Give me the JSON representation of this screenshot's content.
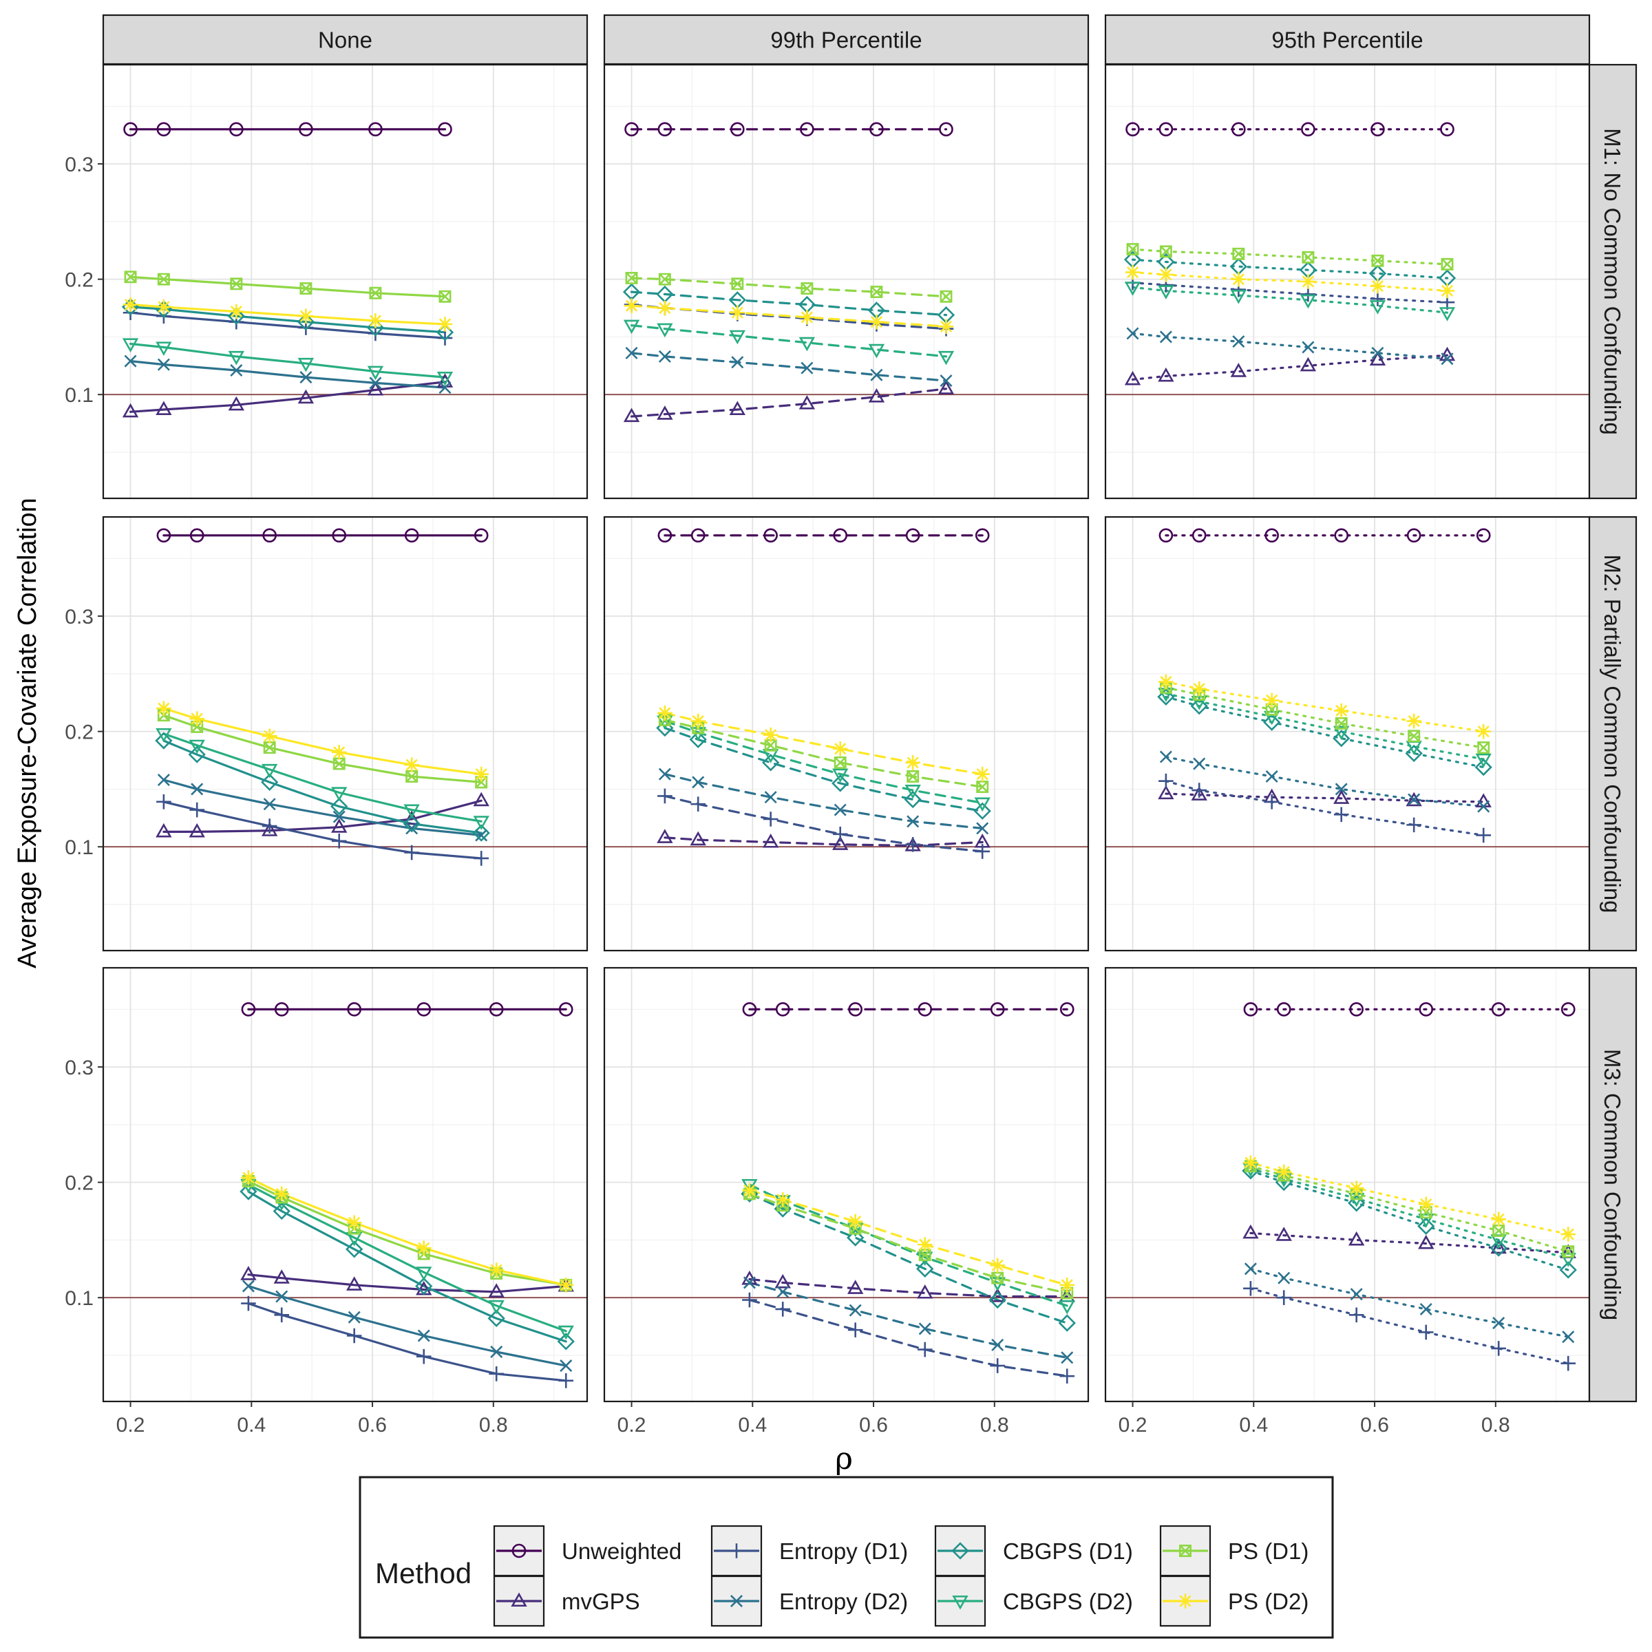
{
  "chart_data": {
    "type": "line",
    "layout": "faceted grid, 3 rows x 3 columns, shared axes",
    "ylabel": "Average Exposure-Covariate Correlation",
    "xlabel": "ρ",
    "x_ticks": [
      0.2,
      0.4,
      0.6,
      0.8
    ],
    "y_ticks": [
      0.1,
      0.2,
      0.3
    ],
    "xlim": [
      0.155,
      0.955
    ],
    "ylim": [
      0.01,
      0.386
    ],
    "reference_line_y": 0.1,
    "reference_line_color": "#8b4a4a",
    "grid": true,
    "legend_placement": "bottom",
    "col_facets": [
      "None",
      "99th Percentile",
      "95th Percentile"
    ],
    "col_linetypes": [
      "solid",
      "dashed",
      "dotted"
    ],
    "row_facets": [
      "M1: No Common Confounding",
      "M2: Partially Common Confounding",
      "M3: Common Confounding"
    ],
    "legend": {
      "title": "Method",
      "entries": [
        {
          "name": "Unweighted",
          "color": "#440154",
          "marker": "circle"
        },
        {
          "name": "mvGPS",
          "color": "#472d7b",
          "marker": "triangle"
        },
        {
          "name": "Entropy (D1)",
          "color": "#3b528b",
          "marker": "plus"
        },
        {
          "name": "Entropy (D2)",
          "color": "#2c728e",
          "marker": "cross"
        },
        {
          "name": "CBGPS (D1)",
          "color": "#21918c",
          "marker": "diamond"
        },
        {
          "name": "CBGPS (D2)",
          "color": "#28ae80",
          "marker": "triangle-down"
        },
        {
          "name": "PS (D1)",
          "color": "#8fd744",
          "marker": "square-x"
        },
        {
          "name": "PS (D2)",
          "color": "#fde725",
          "marker": "asterisk"
        }
      ]
    },
    "panels": [
      {
        "row": 0,
        "col": 0,
        "x": [
          0.2,
          0.255,
          0.375,
          0.49,
          0.605,
          0.72
        ],
        "series": {
          "Unweighted": [
            0.33,
            0.33,
            0.33,
            0.33,
            0.33,
            0.33
          ],
          "mvGPS": [
            0.085,
            0.087,
            0.091,
            0.097,
            0.104,
            0.111
          ],
          "Entropy (D1)": [
            0.171,
            0.168,
            0.163,
            0.158,
            0.153,
            0.149
          ],
          "Entropy (D2)": [
            0.129,
            0.126,
            0.121,
            0.115,
            0.11,
            0.106
          ],
          "CBGPS (D1)": [
            0.176,
            0.174,
            0.168,
            0.163,
            0.158,
            0.154
          ],
          "CBGPS (D2)": [
            0.144,
            0.141,
            0.133,
            0.127,
            0.12,
            0.115
          ],
          "PS (D1)": [
            0.202,
            0.2,
            0.196,
            0.192,
            0.188,
            0.185
          ],
          "PS (D2)": [
            0.178,
            0.176,
            0.172,
            0.168,
            0.164,
            0.161
          ]
        }
      },
      {
        "row": 0,
        "col": 1,
        "x": [
          0.2,
          0.255,
          0.375,
          0.49,
          0.605,
          0.72
        ],
        "series": {
          "Unweighted": [
            0.33,
            0.33,
            0.33,
            0.33,
            0.33,
            0.33
          ],
          "mvGPS": [
            0.081,
            0.083,
            0.087,
            0.092,
            0.098,
            0.105
          ],
          "Entropy (D1)": [
            0.178,
            0.175,
            0.17,
            0.166,
            0.161,
            0.157
          ],
          "Entropy (D2)": [
            0.136,
            0.133,
            0.128,
            0.123,
            0.117,
            0.112
          ],
          "CBGPS (D1)": [
            0.189,
            0.187,
            0.182,
            0.178,
            0.173,
            0.169
          ],
          "CBGPS (D2)": [
            0.16,
            0.157,
            0.151,
            0.145,
            0.139,
            0.133
          ],
          "PS (D1)": [
            0.201,
            0.2,
            0.196,
            0.192,
            0.189,
            0.185
          ],
          "PS (D2)": [
            0.177,
            0.175,
            0.171,
            0.167,
            0.163,
            0.159
          ]
        }
      },
      {
        "row": 0,
        "col": 2,
        "x": [
          0.2,
          0.255,
          0.375,
          0.49,
          0.605,
          0.72
        ],
        "series": {
          "Unweighted": [
            0.33,
            0.33,
            0.33,
            0.33,
            0.33,
            0.33
          ],
          "mvGPS": [
            0.113,
            0.116,
            0.12,
            0.125,
            0.13,
            0.134
          ],
          "Entropy (D1)": [
            0.197,
            0.195,
            0.191,
            0.187,
            0.183,
            0.18
          ],
          "Entropy (D2)": [
            0.153,
            0.15,
            0.146,
            0.141,
            0.136,
            0.131
          ],
          "CBGPS (D1)": [
            0.217,
            0.215,
            0.211,
            0.208,
            0.205,
            0.201
          ],
          "CBGPS (D2)": [
            0.193,
            0.19,
            0.186,
            0.182,
            0.177,
            0.171
          ],
          "PS (D1)": [
            0.226,
            0.224,
            0.222,
            0.219,
            0.216,
            0.213
          ],
          "PS (D2)": [
            0.206,
            0.204,
            0.2,
            0.198,
            0.194,
            0.19
          ]
        }
      },
      {
        "row": 1,
        "col": 0,
        "x": [
          0.255,
          0.31,
          0.43,
          0.545,
          0.665,
          0.78
        ],
        "series": {
          "Unweighted": [
            0.37,
            0.37,
            0.37,
            0.37,
            0.37,
            0.37
          ],
          "mvGPS": [
            0.113,
            0.113,
            0.114,
            0.117,
            0.124,
            0.14
          ],
          "Entropy (D1)": [
            0.139,
            0.132,
            0.118,
            0.105,
            0.095,
            0.09
          ],
          "Entropy (D2)": [
            0.158,
            0.15,
            0.137,
            0.126,
            0.116,
            0.11
          ],
          "CBGPS (D1)": [
            0.192,
            0.18,
            0.156,
            0.135,
            0.12,
            0.112
          ],
          "CBGPS (D2)": [
            0.198,
            0.188,
            0.167,
            0.147,
            0.132,
            0.122
          ],
          "PS (D1)": [
            0.214,
            0.204,
            0.186,
            0.172,
            0.161,
            0.156
          ],
          "PS (D2)": [
            0.22,
            0.211,
            0.196,
            0.182,
            0.171,
            0.163
          ]
        }
      },
      {
        "row": 1,
        "col": 1,
        "x": [
          0.255,
          0.31,
          0.43,
          0.545,
          0.665,
          0.78
        ],
        "series": {
          "Unweighted": [
            0.37,
            0.37,
            0.37,
            0.37,
            0.37,
            0.37
          ],
          "mvGPS": [
            0.108,
            0.106,
            0.104,
            0.102,
            0.101,
            0.104
          ],
          "Entropy (D1)": [
            0.144,
            0.137,
            0.124,
            0.111,
            0.102,
            0.096
          ],
          "Entropy (D2)": [
            0.163,
            0.156,
            0.143,
            0.132,
            0.122,
            0.116
          ],
          "CBGPS (D1)": [
            0.203,
            0.193,
            0.173,
            0.155,
            0.141,
            0.131
          ],
          "CBGPS (D2)": [
            0.209,
            0.199,
            0.18,
            0.163,
            0.149,
            0.138
          ],
          "PS (D1)": [
            0.21,
            0.203,
            0.188,
            0.173,
            0.161,
            0.152
          ],
          "PS (D2)": [
            0.216,
            0.209,
            0.197,
            0.185,
            0.173,
            0.163
          ]
        }
      },
      {
        "row": 1,
        "col": 2,
        "x": [
          0.255,
          0.31,
          0.43,
          0.545,
          0.665,
          0.78
        ],
        "series": {
          "Unweighted": [
            0.37,
            0.37,
            0.37,
            0.37,
            0.37,
            0.37
          ],
          "mvGPS": [
            0.146,
            0.145,
            0.143,
            0.142,
            0.14,
            0.139
          ],
          "Entropy (D1)": [
            0.157,
            0.149,
            0.139,
            0.128,
            0.119,
            0.11
          ],
          "Entropy (D2)": [
            0.178,
            0.172,
            0.161,
            0.15,
            0.141,
            0.135
          ],
          "CBGPS (D1)": [
            0.23,
            0.222,
            0.208,
            0.194,
            0.181,
            0.169
          ],
          "CBGPS (D2)": [
            0.233,
            0.226,
            0.213,
            0.2,
            0.187,
            0.176
          ],
          "PS (D1)": [
            0.238,
            0.232,
            0.219,
            0.207,
            0.196,
            0.186
          ],
          "PS (D2)": [
            0.243,
            0.237,
            0.227,
            0.218,
            0.209,
            0.2
          ]
        }
      },
      {
        "row": 2,
        "col": 0,
        "x": [
          0.395,
          0.45,
          0.57,
          0.685,
          0.805,
          0.92
        ],
        "series": {
          "Unweighted": [
            0.35,
            0.35,
            0.35,
            0.35,
            0.35,
            0.35
          ],
          "mvGPS": [
            0.12,
            0.117,
            0.111,
            0.107,
            0.105,
            0.11
          ],
          "Entropy (D1)": [
            0.095,
            0.085,
            0.067,
            0.049,
            0.034,
            0.028
          ],
          "Entropy (D2)": [
            0.11,
            0.101,
            0.083,
            0.067,
            0.053,
            0.041
          ],
          "CBGPS (D1)": [
            0.192,
            0.175,
            0.142,
            0.11,
            0.082,
            0.062
          ],
          "CBGPS (D2)": [
            0.198,
            0.183,
            0.152,
            0.122,
            0.093,
            0.071
          ],
          "PS (D1)": [
            0.201,
            0.187,
            0.16,
            0.138,
            0.121,
            0.111
          ],
          "PS (D2)": [
            0.204,
            0.19,
            0.165,
            0.143,
            0.124,
            0.111
          ]
        }
      },
      {
        "row": 2,
        "col": 1,
        "x": [
          0.395,
          0.45,
          0.57,
          0.685,
          0.805,
          0.92
        ],
        "series": {
          "Unweighted": [
            0.35,
            0.35,
            0.35,
            0.35,
            0.35,
            0.35
          ],
          "mvGPS": [
            0.116,
            0.113,
            0.108,
            0.104,
            0.101,
            0.101
          ],
          "Entropy (D1)": [
            0.098,
            0.09,
            0.072,
            0.055,
            0.041,
            0.032
          ],
          "Entropy (D2)": [
            0.113,
            0.105,
            0.089,
            0.073,
            0.059,
            0.048
          ],
          "CBGPS (D1)": [
            0.19,
            0.177,
            0.152,
            0.125,
            0.098,
            0.078
          ],
          "CBGPS (D2)": [
            0.198,
            0.184,
            0.16,
            0.135,
            0.113,
            0.093
          ],
          "PS (D1)": [
            0.19,
            0.18,
            0.16,
            0.137,
            0.117,
            0.104
          ],
          "PS (D2)": [
            0.193,
            0.185,
            0.166,
            0.146,
            0.128,
            0.111
          ]
        }
      },
      {
        "row": 2,
        "col": 2,
        "x": [
          0.395,
          0.45,
          0.57,
          0.685,
          0.805,
          0.92
        ],
        "series": {
          "Unweighted": [
            0.35,
            0.35,
            0.35,
            0.35,
            0.35,
            0.35
          ],
          "mvGPS": [
            0.156,
            0.154,
            0.15,
            0.147,
            0.143,
            0.139
          ],
          "Entropy (D1)": [
            0.108,
            0.1,
            0.085,
            0.07,
            0.056,
            0.043
          ],
          "Entropy (D2)": [
            0.125,
            0.117,
            0.103,
            0.09,
            0.078,
            0.066
          ],
          "CBGPS (D1)": [
            0.21,
            0.2,
            0.182,
            0.162,
            0.143,
            0.124
          ],
          "CBGPS (D2)": [
            0.212,
            0.203,
            0.186,
            0.168,
            0.15,
            0.134
          ],
          "PS (D1)": [
            0.214,
            0.206,
            0.19,
            0.174,
            0.158,
            0.14
          ],
          "PS (D2)": [
            0.217,
            0.209,
            0.195,
            0.181,
            0.168,
            0.155
          ]
        }
      }
    ]
  }
}
